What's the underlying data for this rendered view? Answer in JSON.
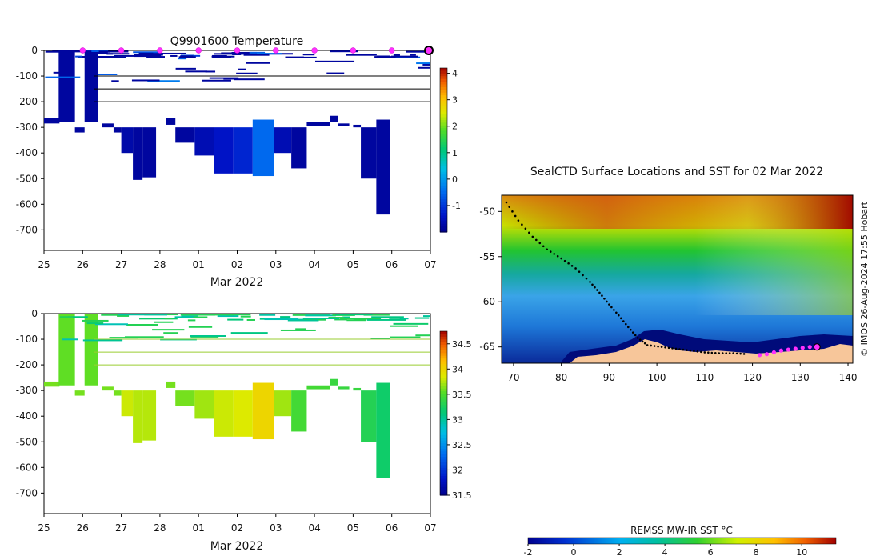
{
  "chart_data": [
    {
      "type": "heatmap",
      "title": "Q9901600  Temperature",
      "xlabel": "Mar 2022",
      "ylabel": "",
      "x_tick_labels": [
        "25",
        "26",
        "27",
        "28",
        "01",
        "02",
        "03",
        "04",
        "05",
        "06",
        "07"
      ],
      "x_range_days": [
        0,
        10
      ],
      "y_tick_labels": [
        "0",
        "-100",
        "-200",
        "-300",
        "-400",
        "-500",
        "-600",
        "-700"
      ],
      "y_ticks": [
        0,
        -100,
        -200,
        -300,
        -400,
        -500,
        -600,
        -700
      ],
      "ylim": [
        -780,
        0
      ],
      "horizontal_lines_depth": [
        -100,
        -150,
        -200
      ],
      "surface_marker_days": [
        1,
        2,
        3,
        4,
        5,
        6,
        7,
        8,
        9
      ],
      "latest_marker_day": 10,
      "colorbar": {
        "ticks": [
          4,
          3,
          2,
          1,
          0,
          -1
        ],
        "tick_labels": [
          "4",
          "3",
          "2",
          "1",
          "0",
          "-1"
        ],
        "range": [
          -2,
          4.2
        ]
      },
      "profiles": [
        {
          "x0": 0.0,
          "x1": 0.4,
          "top": -265,
          "bottom": -285,
          "value": -1.8
        },
        {
          "x0": 0.38,
          "x1": 0.8,
          "top": 0,
          "bottom": -280,
          "value": -1.8
        },
        {
          "x0": 0.8,
          "x1": 1.05,
          "top": -300,
          "bottom": -320,
          "value": -1.8
        },
        {
          "x0": 1.05,
          "x1": 1.4,
          "top": 0,
          "bottom": -280,
          "value": -1.8
        },
        {
          "x0": 1.5,
          "x1": 1.8,
          "top": -285,
          "bottom": -300,
          "value": -1.8
        },
        {
          "x0": 1.8,
          "x1": 2.0,
          "top": -300,
          "bottom": -320,
          "value": -1.8
        },
        {
          "x0": 2.0,
          "x1": 2.3,
          "top": -300,
          "bottom": -400,
          "value": -1.7
        },
        {
          "x0": 2.3,
          "x1": 2.55,
          "top": -300,
          "bottom": -505,
          "value": -1.8
        },
        {
          "x0": 2.55,
          "x1": 2.9,
          "top": -300,
          "bottom": -495,
          "value": -1.8
        },
        {
          "x0": 3.15,
          "x1": 3.4,
          "top": -265,
          "bottom": -290,
          "value": -1.8
        },
        {
          "x0": 3.4,
          "x1": 3.9,
          "top": -300,
          "bottom": -360,
          "value": -1.8
        },
        {
          "x0": 3.9,
          "x1": 4.4,
          "top": -300,
          "bottom": -410,
          "value": -1.6
        },
        {
          "x0": 4.4,
          "x1": 4.9,
          "top": -300,
          "bottom": -480,
          "value": -1.4
        },
        {
          "x0": 4.9,
          "x1": 5.4,
          "top": -300,
          "bottom": -480,
          "value": -1.2
        },
        {
          "x0": 5.4,
          "x1": 5.95,
          "top": -270,
          "bottom": -490,
          "value": -0.5
        },
        {
          "x0": 5.95,
          "x1": 6.4,
          "top": -300,
          "bottom": -400,
          "value": -1.6
        },
        {
          "x0": 6.4,
          "x1": 6.8,
          "top": -300,
          "bottom": -460,
          "value": -1.8
        },
        {
          "x0": 6.8,
          "x1": 7.4,
          "top": -280,
          "bottom": -295,
          "value": -1.8
        },
        {
          "x0": 7.4,
          "x1": 7.6,
          "top": -255,
          "bottom": -280,
          "value": -1.8
        },
        {
          "x0": 7.6,
          "x1": 7.9,
          "top": -285,
          "bottom": -295,
          "value": -1.8
        },
        {
          "x0": 8.0,
          "x1": 8.2,
          "top": -290,
          "bottom": -300,
          "value": -1.8
        },
        {
          "x0": 8.2,
          "x1": 8.6,
          "top": -300,
          "bottom": -500,
          "value": -1.8
        },
        {
          "x0": 8.6,
          "x1": 8.95,
          "top": -270,
          "bottom": -640,
          "value": -1.8
        }
      ]
    },
    {
      "type": "heatmap",
      "title": "",
      "xlabel": "Mar 2022",
      "ylabel": "",
      "x_tick_labels": [
        "25",
        "26",
        "27",
        "28",
        "01",
        "02",
        "03",
        "04",
        "05",
        "06",
        "07"
      ],
      "x_range_days": [
        0,
        10
      ],
      "y_tick_labels": [
        "0",
        "-100",
        "-200",
        "-300",
        "-400",
        "-500",
        "-600",
        "-700"
      ],
      "y_ticks": [
        0,
        -100,
        -200,
        -300,
        -400,
        -500,
        -600,
        -700
      ],
      "ylim": [
        -780,
        0
      ],
      "horizontal_lines_depth": [
        -100,
        -150,
        -200
      ],
      "colorbar": {
        "ticks": [
          34.5,
          34,
          33.5,
          33,
          32.5,
          32,
          31.5
        ],
        "tick_labels": [
          "34.5",
          "34",
          "33.5",
          "33",
          "32.5",
          "32",
          "31.5"
        ],
        "range": [
          31.5,
          34.75
        ]
      },
      "profiles": [
        {
          "x0": 0.0,
          "x1": 0.4,
          "top": -265,
          "bottom": -285,
          "value": 33.6
        },
        {
          "x0": 0.38,
          "x1": 0.8,
          "top": 0,
          "bottom": -280,
          "value": 33.55
        },
        {
          "x0": 0.8,
          "x1": 1.05,
          "top": -300,
          "bottom": -320,
          "value": 33.6
        },
        {
          "x0": 1.05,
          "x1": 1.4,
          "top": 0,
          "bottom": -280,
          "value": 33.55
        },
        {
          "x0": 1.5,
          "x1": 1.8,
          "top": -285,
          "bottom": -300,
          "value": 33.6
        },
        {
          "x0": 1.8,
          "x1": 2.0,
          "top": -300,
          "bottom": -320,
          "value": 33.6
        },
        {
          "x0": 2.0,
          "x1": 2.3,
          "top": -300,
          "bottom": -400,
          "value": 33.8
        },
        {
          "x0": 2.3,
          "x1": 2.55,
          "top": -300,
          "bottom": -505,
          "value": 33.75
        },
        {
          "x0": 2.55,
          "x1": 2.9,
          "top": -300,
          "bottom": -495,
          "value": 33.75
        },
        {
          "x0": 3.15,
          "x1": 3.4,
          "top": -265,
          "bottom": -290,
          "value": 33.6
        },
        {
          "x0": 3.4,
          "x1": 3.9,
          "top": -300,
          "bottom": -360,
          "value": 33.6
        },
        {
          "x0": 3.9,
          "x1": 4.4,
          "top": -300,
          "bottom": -410,
          "value": 33.7
        },
        {
          "x0": 4.4,
          "x1": 4.9,
          "top": -300,
          "bottom": -480,
          "value": 33.8
        },
        {
          "x0": 4.9,
          "x1": 5.4,
          "top": -300,
          "bottom": -480,
          "value": 33.85
        },
        {
          "x0": 5.4,
          "x1": 5.95,
          "top": -270,
          "bottom": -490,
          "value": 34.0
        },
        {
          "x0": 5.95,
          "x1": 6.4,
          "top": -300,
          "bottom": -400,
          "value": 33.7
        },
        {
          "x0": 6.4,
          "x1": 6.8,
          "top": -300,
          "bottom": -460,
          "value": 33.45
        },
        {
          "x0": 6.8,
          "x1": 7.4,
          "top": -280,
          "bottom": -295,
          "value": 33.45
        },
        {
          "x0": 7.4,
          "x1": 7.6,
          "top": -255,
          "bottom": -280,
          "value": 33.4
        },
        {
          "x0": 7.6,
          "x1": 7.9,
          "top": -285,
          "bottom": -295,
          "value": 33.4
        },
        {
          "x0": 8.0,
          "x1": 8.2,
          "top": -290,
          "bottom": -300,
          "value": 33.4
        },
        {
          "x0": 8.2,
          "x1": 8.6,
          "top": -300,
          "bottom": -500,
          "value": 33.3
        },
        {
          "x0": 8.6,
          "x1": 8.95,
          "top": -270,
          "bottom": -640,
          "value": 33.2
        }
      ]
    },
    {
      "type": "heatmap",
      "title": "SealCTD Surface Locations and SST for 02 Mar 2022",
      "xlabel": "",
      "ylabel": "",
      "x_tick_labels": [
        "70",
        "80",
        "90",
        "100",
        "110",
        "120",
        "130",
        "140"
      ],
      "x_ticks": [
        70,
        80,
        90,
        100,
        110,
        120,
        130,
        140
      ],
      "xlim": [
        67.5,
        141
      ],
      "y_tick_labels": [
        "-50",
        "-55",
        "-60",
        "-65"
      ],
      "y_ticks": [
        -50,
        -55,
        -60,
        -65
      ],
      "ylim": [
        -66.8,
        -48.2
      ],
      "side_text": "© IMOS 26-Aug-2024 17:55 Hobart",
      "colorbar": {
        "label": "REMSS MW-IR SST °C",
        "ticks": [
          -2,
          0,
          2,
          4,
          6,
          8,
          10
        ],
        "tick_labels": [
          "-2",
          "0",
          "2",
          "4",
          "6",
          "8",
          "10"
        ],
        "range": [
          -2,
          11.5
        ]
      },
      "track": [
        [
          68.5,
          -49.0
        ],
        [
          71,
          -51.0
        ],
        [
          74,
          -52.8
        ],
        [
          77,
          -54.2
        ],
        [
          80,
          -55.2
        ],
        [
          83,
          -56.3
        ],
        [
          86,
          -57.8
        ],
        [
          88,
          -59.0
        ],
        [
          90,
          -60.3
        ],
        [
          92,
          -61.5
        ],
        [
          94,
          -62.8
        ],
        [
          96,
          -64.0
        ],
        [
          98,
          -64.8
        ],
        [
          101,
          -65.0
        ],
        [
          104,
          -65.2
        ],
        [
          107,
          -65.4
        ],
        [
          110,
          -65.6
        ],
        [
          113,
          -65.7
        ],
        [
          116,
          -65.7
        ],
        [
          119,
          -65.8
        ]
      ],
      "recent_surface_locations": [
        [
          121.5,
          -65.9
        ],
        [
          123,
          -65.8
        ],
        [
          124.5,
          -65.6
        ],
        [
          126,
          -65.4
        ],
        [
          127.5,
          -65.3
        ],
        [
          129,
          -65.2
        ],
        [
          130.5,
          -65.1
        ],
        [
          132,
          -65.0
        ]
      ],
      "latest_location": [
        133.5,
        -65.0
      ]
    }
  ]
}
